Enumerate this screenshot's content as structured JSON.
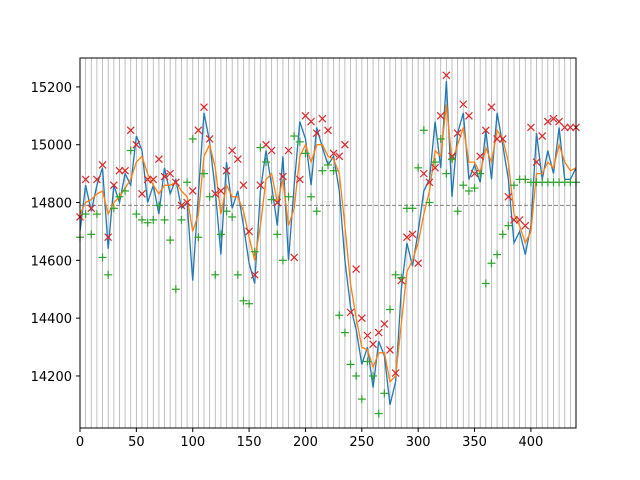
{
  "chart_data": {
    "type": "line",
    "title": "",
    "xlabel": "",
    "ylabel": "",
    "xlim": [
      0,
      440
    ],
    "ylim": [
      14020,
      15300
    ],
    "x_ticks": [
      0,
      50,
      100,
      150,
      200,
      250,
      300,
      350,
      400
    ],
    "y_ticks": [
      14200,
      14400,
      14600,
      14800,
      15000,
      15200
    ],
    "vertical_grid_every": 5,
    "reference_line": {
      "value": 14790,
      "style": "dashed",
      "color": "#808080"
    },
    "series": [
      {
        "kind": "price-line",
        "color": "#1f77b4",
        "x": [
          0,
          5,
          10,
          15,
          20,
          25,
          30,
          35,
          40,
          45,
          50,
          55,
          60,
          65,
          70,
          75,
          80,
          85,
          90,
          95,
          100,
          105,
          110,
          115,
          120,
          125,
          130,
          135,
          140,
          145,
          150,
          155,
          160,
          165,
          170,
          175,
          180,
          185,
          190,
          195,
          200,
          205,
          210,
          215,
          220,
          225,
          230,
          235,
          240,
          245,
          250,
          255,
          260,
          265,
          270,
          275,
          280,
          285,
          290,
          295,
          300,
          305,
          310,
          315,
          320,
          325,
          330,
          335,
          340,
          345,
          350,
          355,
          360,
          365,
          370,
          375,
          380,
          385,
          390,
          395,
          400,
          405,
          410,
          415,
          420,
          425,
          430,
          435,
          440
        ],
        "y": [
          14700,
          14860,
          14770,
          14860,
          14920,
          14640,
          14860,
          14800,
          14900,
          14860,
          15030,
          14980,
          14800,
          14860,
          14760,
          14920,
          14830,
          14880,
          14780,
          14800,
          14530,
          14830,
          15110,
          15010,
          14840,
          14620,
          14940,
          14780,
          14840,
          14720,
          14590,
          14520,
          14840,
          14980,
          14860,
          14720,
          14960,
          14600,
          14860,
          15080,
          15020,
          14860,
          15060,
          14990,
          14930,
          14960,
          14840,
          14600,
          14440,
          14360,
          14240,
          14300,
          14160,
          14320,
          14270,
          14100,
          14180,
          14500,
          14660,
          14580,
          14700,
          14840,
          14880,
          15080,
          14920,
          15220,
          14820,
          15040,
          15110,
          14880,
          14930,
          14870,
          15050,
          14880,
          15110,
          15000,
          14880,
          14660,
          14700,
          14620,
          14720,
          15040,
          14880,
          14980,
          14900,
          15060,
          14880,
          14880,
          14920
        ]
      },
      {
        "kind": "smoothed-line",
        "color": "#ff7f0e",
        "x": [
          0,
          5,
          10,
          15,
          20,
          25,
          30,
          35,
          40,
          45,
          50,
          55,
          60,
          65,
          70,
          75,
          80,
          85,
          90,
          95,
          100,
          105,
          110,
          115,
          120,
          125,
          130,
          135,
          140,
          145,
          150,
          155,
          160,
          165,
          170,
          175,
          180,
          185,
          190,
          195,
          200,
          205,
          210,
          215,
          220,
          225,
          230,
          235,
          240,
          245,
          250,
          255,
          260,
          265,
          270,
          275,
          280,
          285,
          290,
          295,
          300,
          305,
          310,
          315,
          320,
          325,
          330,
          335,
          340,
          345,
          350,
          355,
          360,
          365,
          370,
          375,
          380,
          385,
          390,
          395,
          400,
          405,
          410,
          415,
          420,
          425,
          430,
          435,
          440
        ],
        "y": [
          14760,
          14800,
          14810,
          14830,
          14840,
          14760,
          14800,
          14820,
          14850,
          14880,
          14940,
          14960,
          14900,
          14860,
          14830,
          14860,
          14860,
          14870,
          14840,
          14820,
          14700,
          14760,
          14960,
          15000,
          14920,
          14760,
          14860,
          14820,
          14820,
          14770,
          14680,
          14600,
          14720,
          14880,
          14900,
          14800,
          14880,
          14720,
          14780,
          14960,
          15000,
          14940,
          15000,
          15000,
          14960,
          14950,
          14900,
          14720,
          14520,
          14400,
          14300,
          14290,
          14230,
          14280,
          14280,
          14180,
          14200,
          14380,
          14560,
          14600,
          14660,
          14760,
          14840,
          14980,
          14960,
          15140,
          14940,
          15000,
          15060,
          14940,
          14940,
          14900,
          14990,
          14940,
          15050,
          15020,
          14940,
          14760,
          14720,
          14660,
          14700,
          14900,
          14900,
          14940,
          14920,
          15000,
          14940,
          14910,
          14920
        ]
      },
      {
        "kind": "high-markers",
        "marker": "x",
        "color": "#d62728",
        "x": [
          0,
          5,
          10,
          15,
          20,
          25,
          30,
          35,
          40,
          45,
          50,
          55,
          60,
          65,
          70,
          75,
          80,
          85,
          90,
          95,
          100,
          105,
          110,
          115,
          120,
          125,
          130,
          135,
          140,
          145,
          150,
          155,
          160,
          165,
          170,
          175,
          180,
          185,
          190,
          195,
          200,
          205,
          210,
          215,
          220,
          225,
          230,
          235,
          240,
          245,
          250,
          255,
          260,
          265,
          270,
          275,
          280,
          285,
          290,
          295,
          300,
          305,
          310,
          315,
          320,
          325,
          330,
          335,
          340,
          345,
          350,
          355,
          360,
          365,
          370,
          375,
          380,
          385,
          390,
          395,
          400,
          405,
          410,
          415,
          420,
          425,
          430,
          435,
          440
        ],
        "y": [
          14750,
          14880,
          14780,
          14880,
          14930,
          14680,
          14860,
          14910,
          14910,
          15050,
          15000,
          14830,
          14880,
          14880,
          14950,
          14890,
          14900,
          14870,
          14790,
          14800,
          14840,
          15050,
          15130,
          15020,
          14830,
          14840,
          14910,
          14980,
          14950,
          14860,
          14700,
          14550,
          14860,
          15000,
          14980,
          14800,
          14890,
          14980,
          14610,
          14880,
          15100,
          15080,
          15040,
          15090,
          15050,
          14970,
          14960,
          15000,
          14420,
          14570,
          14400,
          14340,
          14310,
          14350,
          14380,
          14290,
          14210,
          14530,
          14680,
          14690,
          14590,
          14900,
          14870,
          14920,
          15100,
          15240,
          14960,
          15040,
          15140,
          15100,
          14900,
          14960,
          15050,
          15130,
          15020,
          15020,
          14820,
          14740,
          14740,
          14720,
          15060,
          14940,
          15030,
          15080,
          15090,
          15080,
          15060,
          15060,
          15060
        ]
      },
      {
        "kind": "low-markers",
        "marker": "+",
        "color": "#2ca02c",
        "x": [
          0,
          5,
          10,
          15,
          20,
          25,
          30,
          35,
          40,
          45,
          50,
          55,
          60,
          65,
          70,
          75,
          80,
          85,
          90,
          95,
          100,
          105,
          110,
          115,
          120,
          125,
          130,
          135,
          140,
          145,
          150,
          155,
          160,
          165,
          170,
          175,
          180,
          185,
          190,
          195,
          200,
          205,
          210,
          215,
          220,
          225,
          230,
          235,
          240,
          245,
          250,
          255,
          260,
          265,
          270,
          275,
          280,
          285,
          290,
          295,
          300,
          305,
          310,
          315,
          320,
          325,
          330,
          335,
          340,
          345,
          350,
          355,
          360,
          365,
          370,
          375,
          380,
          385,
          390,
          395,
          400,
          405,
          410,
          415,
          420,
          425,
          430,
          435,
          440
        ],
        "y": [
          14680,
          14760,
          14690,
          14760,
          14610,
          14550,
          14780,
          14820,
          14840,
          14980,
          14760,
          14740,
          14730,
          14740,
          14790,
          14740,
          14670,
          14500,
          14740,
          14870,
          15020,
          14680,
          14900,
          14820,
          14550,
          14690,
          14770,
          14750,
          14550,
          14460,
          14450,
          14630,
          14990,
          14940,
          14810,
          14690,
          14600,
          14820,
          15030,
          15010,
          14970,
          14820,
          14770,
          14910,
          14930,
          14910,
          14410,
          14350,
          14240,
          14200,
          14120,
          14250,
          14200,
          14070,
          14140,
          14430,
          14550,
          14540,
          14780,
          14780,
          14920,
          15050,
          14800,
          14940,
          15020,
          14900,
          14950,
          14770,
          14860,
          14840,
          14850,
          14900,
          14520,
          14590,
          14620,
          14690,
          14720,
          14860,
          14880,
          14880,
          14870,
          14870,
          14870,
          14870,
          14870,
          14870,
          14870,
          14870,
          14870
        ]
      }
    ]
  }
}
